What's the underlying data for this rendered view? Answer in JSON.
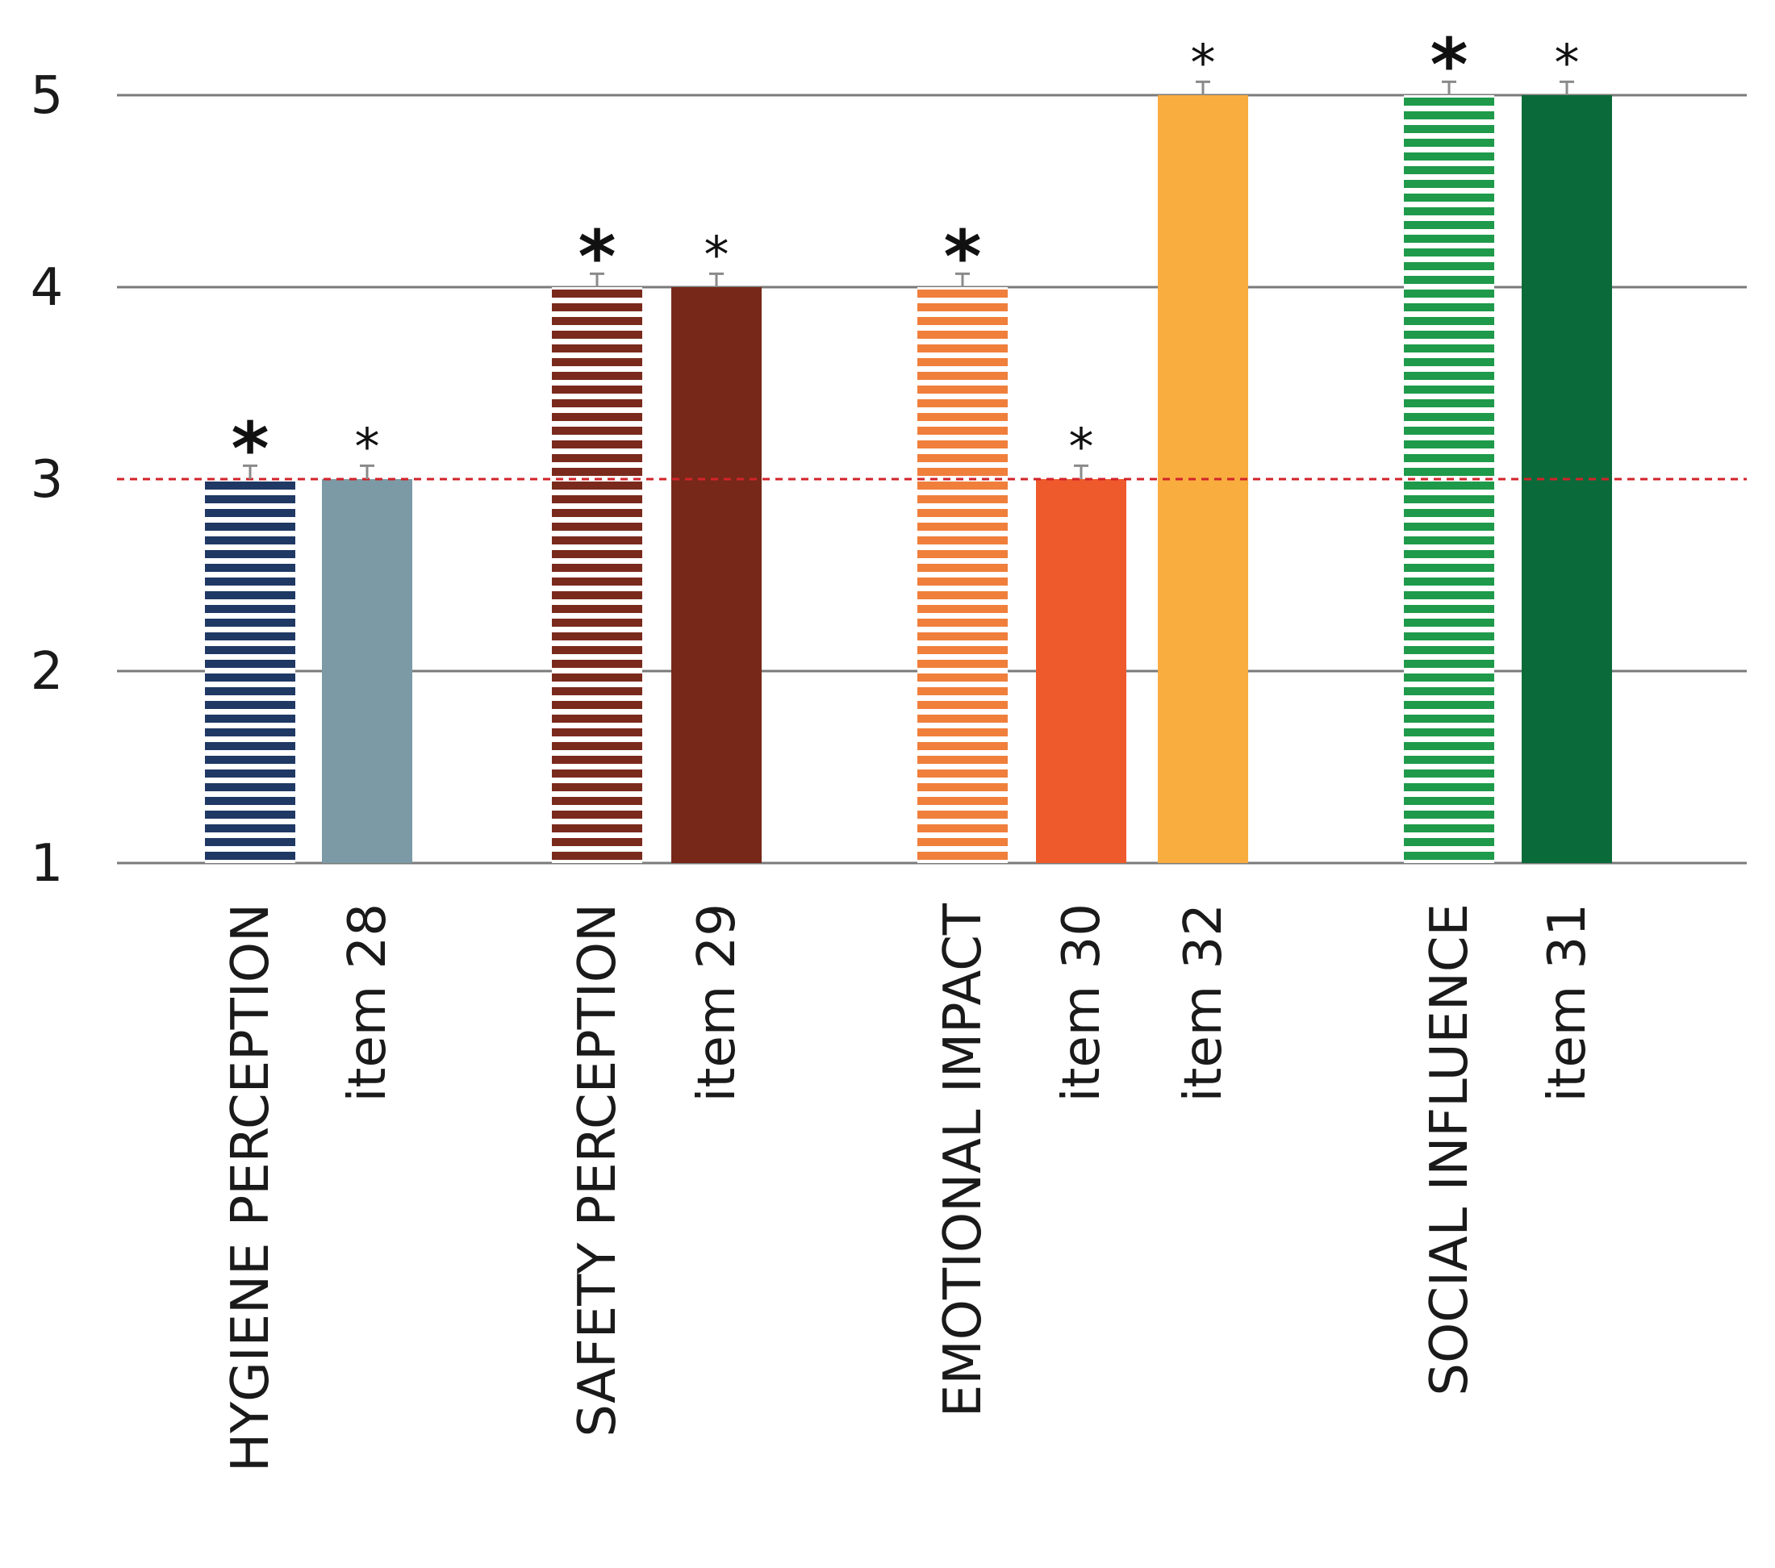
{
  "chart_data": {
    "type": "bar",
    "title": "",
    "xlabel": "",
    "ylabel": "",
    "ylim": [
      1,
      5
    ],
    "yticks": [
      "1",
      "2",
      "3",
      "4",
      "5"
    ],
    "reference_line": {
      "value": 3,
      "style": "dashed",
      "color": "#d2232a"
    },
    "bars": [
      {
        "label": "HYGIENE PERCEPTION",
        "value": 3,
        "error": 0.07,
        "color": "#1f3864",
        "pattern": "striped",
        "marker": "*",
        "marker_bold": true
      },
      {
        "label": "item 28",
        "value": 3,
        "error": 0.07,
        "color": "#7b9aa6",
        "pattern": "solid",
        "marker": "*",
        "marker_bold": false
      },
      {
        "label": "SAFETY PERCEPTION",
        "value": 4,
        "error": 0.07,
        "color": "#7a2a1c",
        "pattern": "striped",
        "marker": "*",
        "marker_bold": true
      },
      {
        "label": "item 29",
        "value": 4,
        "error": 0.07,
        "color": "#772818",
        "pattern": "solid",
        "marker": "*",
        "marker_bold": false
      },
      {
        "label": "EMOTIONAL IMPACT",
        "value": 4,
        "error": 0.07,
        "color": "#f07f3c",
        "pattern": "striped",
        "marker": "*",
        "marker_bold": true
      },
      {
        "label": "item 30",
        "value": 3,
        "error": 0.07,
        "color": "#ee5a2c",
        "pattern": "solid",
        "marker": "*",
        "marker_bold": false
      },
      {
        "label": "item 32",
        "value": 5,
        "error": 0.07,
        "color": "#f9ad3f",
        "pattern": "solid",
        "marker": "*",
        "marker_bold": false
      },
      {
        "label": "SOCIAL INFLUENCE",
        "value": 5,
        "error": 0.07,
        "color": "#1e9a4a",
        "pattern": "striped",
        "marker": "*",
        "marker_bold": true
      },
      {
        "label": "item 31",
        "value": 5,
        "error": 0.07,
        "color": "#0b6a3a",
        "pattern": "solid",
        "marker": "*",
        "marker_bold": false
      }
    ]
  }
}
